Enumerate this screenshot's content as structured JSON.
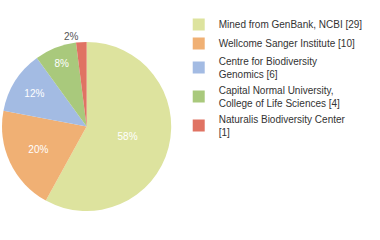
{
  "chart_data": {
    "type": "pie",
    "categories": [
      "Mined from GenBank, NCBI [29]",
      "Wellcome Sanger Institute [10]",
      "Centre for Biodiversity Genomics [6]",
      "Capital Normal University, College of Life Sciences [4]",
      "Naturalis Biodiversity Center [1]"
    ],
    "values": [
      58,
      20,
      12,
      8,
      2
    ],
    "value_labels": [
      "58%",
      "20%",
      "12%",
      "8%",
      "2%"
    ],
    "colors": [
      "#dde39e",
      "#f0b074",
      "#a3bbe3",
      "#a9c97c",
      "#e07363"
    ],
    "data_labels": true,
    "legend": "top right"
  }
}
